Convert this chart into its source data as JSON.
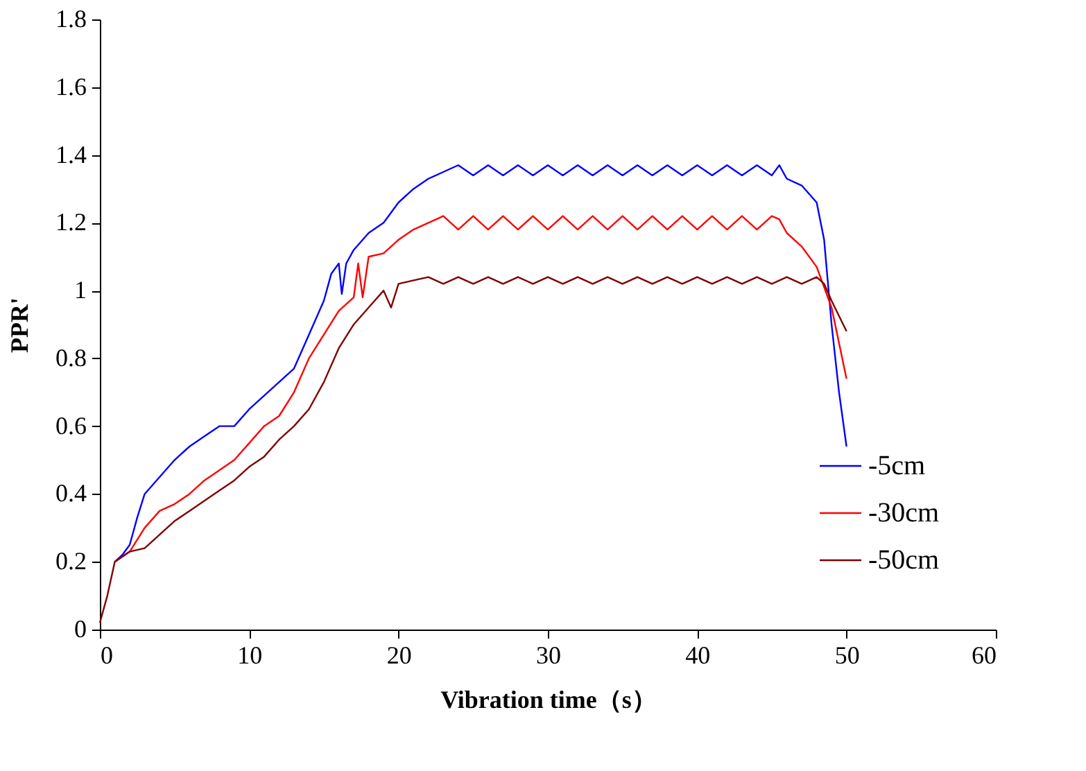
{
  "chart_data": {
    "type": "line",
    "xlabel": "Vibration time（s）",
    "ylabel": "PPR'",
    "xlim": [
      0,
      60
    ],
    "xticks": [
      0,
      10,
      20,
      30,
      40,
      50,
      60
    ],
    "ylim": [
      0,
      1.8
    ],
    "yticks": [
      0,
      0.2,
      0.4,
      0.6,
      0.8,
      1,
      1.2,
      1.4,
      1.6,
      1.8
    ],
    "grid": false,
    "legend": "bottom right",
    "line_style": "solid",
    "marker": "none",
    "series": [
      {
        "name": "-5cm",
        "color": "#0000ff",
        "x": [
          1,
          1.5,
          2,
          2.5,
          3,
          4,
          5,
          6,
          7,
          8,
          9,
          10,
          11,
          12,
          13,
          14,
          15,
          15.5,
          16,
          16.2,
          16.5,
          17,
          18,
          19,
          20,
          21,
          22,
          23,
          24,
          25,
          26,
          27,
          28,
          29,
          30,
          31,
          32,
          33,
          34,
          35,
          36,
          37,
          38,
          39,
          40,
          41,
          42,
          43,
          44,
          45,
          45.5,
          46,
          47,
          48,
          48.5,
          49,
          49.5,
          50
        ],
        "values": [
          0.2,
          0.22,
          0.25,
          0.33,
          0.4,
          0.45,
          0.5,
          0.54,
          0.57,
          0.6,
          0.6,
          0.65,
          0.69,
          0.73,
          0.77,
          0.87,
          0.97,
          1.05,
          1.08,
          0.99,
          1.08,
          1.12,
          1.17,
          1.2,
          1.26,
          1.3,
          1.33,
          1.35,
          1.37,
          1.34,
          1.37,
          1.34,
          1.37,
          1.34,
          1.37,
          1.34,
          1.37,
          1.34,
          1.37,
          1.34,
          1.37,
          1.34,
          1.37,
          1.34,
          1.37,
          1.34,
          1.37,
          1.34,
          1.37,
          1.34,
          1.37,
          1.33,
          1.31,
          1.26,
          1.15,
          0.9,
          0.7,
          0.54
        ]
      },
      {
        "name": "-30cm",
        "color": "#ff0000",
        "x": [
          1,
          2,
          3,
          4,
          5,
          6,
          7,
          8,
          9,
          10,
          11,
          12,
          13,
          14,
          15,
          16,
          17,
          17.3,
          17.6,
          18,
          19,
          20,
          21,
          22,
          23,
          24,
          25,
          26,
          27,
          28,
          29,
          30,
          31,
          32,
          33,
          34,
          35,
          36,
          37,
          38,
          39,
          40,
          41,
          42,
          43,
          44,
          45,
          45.5,
          46,
          47,
          48,
          49,
          50
        ],
        "values": [
          0.2,
          0.23,
          0.3,
          0.35,
          0.37,
          0.4,
          0.44,
          0.47,
          0.5,
          0.55,
          0.6,
          0.63,
          0.7,
          0.8,
          0.87,
          0.94,
          0.98,
          1.08,
          0.98,
          1.1,
          1.11,
          1.15,
          1.18,
          1.2,
          1.22,
          1.18,
          1.22,
          1.18,
          1.22,
          1.18,
          1.22,
          1.18,
          1.22,
          1.18,
          1.22,
          1.18,
          1.22,
          1.18,
          1.22,
          1.18,
          1.22,
          1.18,
          1.22,
          1.18,
          1.22,
          1.18,
          1.22,
          1.21,
          1.17,
          1.13,
          1.07,
          0.95,
          0.74
        ]
      },
      {
        "name": "-50cm",
        "color": "#800000",
        "x": [
          0,
          0.5,
          1,
          2,
          3,
          4,
          5,
          6,
          7,
          8,
          9,
          10,
          11,
          12,
          13,
          14,
          15,
          16,
          17,
          18,
          19,
          19.5,
          20,
          21,
          22,
          23,
          24,
          25,
          26,
          27,
          28,
          29,
          30,
          31,
          32,
          33,
          34,
          35,
          36,
          37,
          38,
          39,
          40,
          41,
          42,
          43,
          44,
          45,
          46,
          47,
          48,
          48.5,
          49,
          50
        ],
        "values": [
          0.02,
          0.1,
          0.2,
          0.23,
          0.24,
          0.28,
          0.32,
          0.35,
          0.38,
          0.41,
          0.44,
          0.48,
          0.51,
          0.56,
          0.6,
          0.65,
          0.73,
          0.83,
          0.9,
          0.95,
          1.0,
          0.95,
          1.02,
          1.03,
          1.04,
          1.02,
          1.04,
          1.02,
          1.04,
          1.02,
          1.04,
          1.02,
          1.04,
          1.02,
          1.04,
          1.02,
          1.04,
          1.02,
          1.04,
          1.02,
          1.04,
          1.02,
          1.04,
          1.02,
          1.04,
          1.02,
          1.04,
          1.02,
          1.04,
          1.02,
          1.04,
          1.02,
          0.97,
          0.88
        ]
      }
    ]
  }
}
